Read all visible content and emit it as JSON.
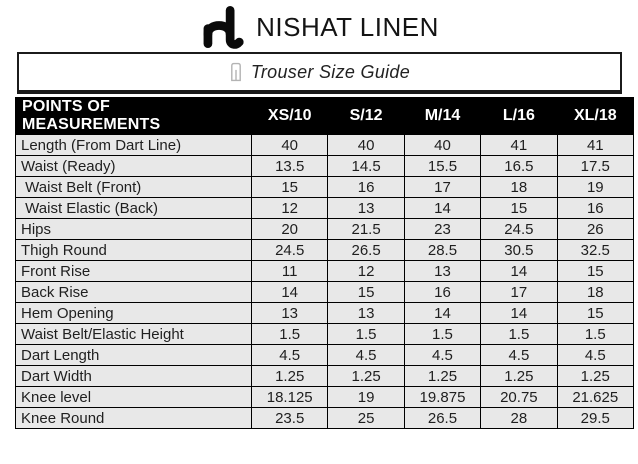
{
  "brand": {
    "name": "NISHAT LINEN",
    "logo_icon": "nl-monogram-icon"
  },
  "guide": {
    "title": "Trouser Size Guide",
    "icon": "trousers-icon"
  },
  "table": {
    "columns": [
      "POINTS OF MEASUREMENTS",
      "XS/10",
      "S/12",
      "M/14",
      "L/16",
      "XL/18"
    ],
    "rows": [
      {
        "label": "Length (From Dart Line)",
        "values": [
          "40",
          "40",
          "40",
          "41",
          "41"
        ]
      },
      {
        "label": "Waist (Ready)",
        "values": [
          "13.5",
          "14.5",
          "15.5",
          "16.5",
          "17.5"
        ]
      },
      {
        "label": " Waist Belt (Front)",
        "values": [
          "15",
          "16",
          "17",
          "18",
          "19"
        ]
      },
      {
        "label": " Waist Elastic (Back)",
        "values": [
          "12",
          "13",
          "14",
          "15",
          "16"
        ]
      },
      {
        "label": "Hips",
        "values": [
          "20",
          "21.5",
          "23",
          "24.5",
          "26"
        ]
      },
      {
        "label": "Thigh Round",
        "values": [
          "24.5",
          "26.5",
          "28.5",
          "30.5",
          "32.5"
        ]
      },
      {
        "label": "Front Rise",
        "values": [
          "11",
          "12",
          "13",
          "14",
          "15"
        ]
      },
      {
        "label": "Back Rise",
        "values": [
          "14",
          "15",
          "16",
          "17",
          "18"
        ]
      },
      {
        "label": "Hem Opening",
        "values": [
          "13",
          "13",
          "14",
          "14",
          "15"
        ]
      },
      {
        "label": "Waist Belt/Elastic Height",
        "values": [
          "1.5",
          "1.5",
          "1.5",
          "1.5",
          "1.5"
        ]
      },
      {
        "label": "Dart Length",
        "values": [
          "4.5",
          "4.5",
          "4.5",
          "4.5",
          "4.5"
        ]
      },
      {
        "label": "Dart Width",
        "values": [
          "1.25",
          "1.25",
          "1.25",
          "1.25",
          "1.25"
        ]
      },
      {
        "label": "Knee level",
        "values": [
          "18.125",
          "19",
          "19.875",
          "20.75",
          "21.625"
        ]
      },
      {
        "label": "Knee Round",
        "values": [
          "23.5",
          "25",
          "26.5",
          "28",
          "29.5"
        ]
      }
    ]
  },
  "colors": {
    "header_bg": "#000000",
    "header_text": "#ffffff",
    "row_bg": "#e8e8e8",
    "grid": "#000000",
    "body_text": "#1f1f1f",
    "icon_gray": "#b3b3b3"
  }
}
